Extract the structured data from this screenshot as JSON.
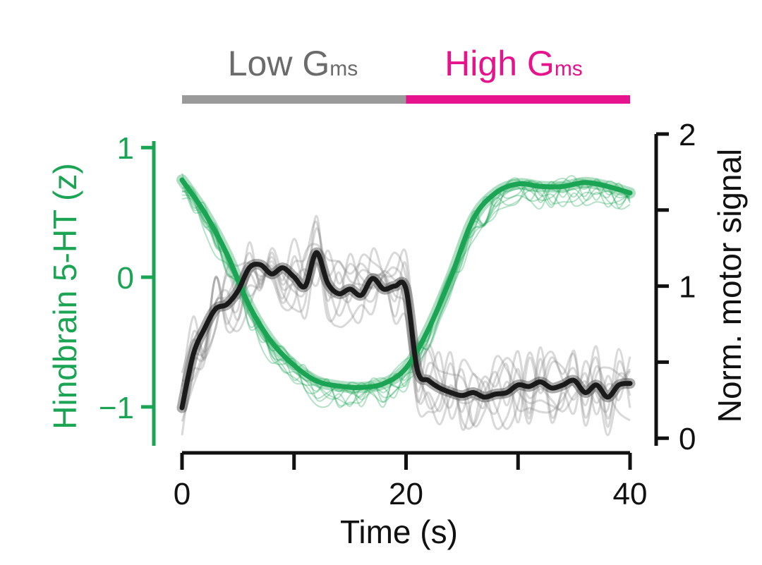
{
  "chart_data": {
    "type": "line",
    "conditions": [
      {
        "label": "Low G",
        "subscript": "ms",
        "color": "#9a9a9a",
        "x_range": [
          0,
          20
        ]
      },
      {
        "label": "High G",
        "subscript": "ms",
        "color": "#e6138c",
        "x_range": [
          20,
          40
        ]
      }
    ],
    "xlabel": "Time (s)",
    "xlim": [
      0,
      40
    ],
    "xticks": [
      0,
      10,
      20,
      30,
      40
    ],
    "xtick_labels": [
      "0",
      "20",
      "40"
    ],
    "y_left": {
      "label": "Hindbrain 5-HT (z)",
      "color": "#1aa454",
      "ylim": [
        -1.3,
        1.05
      ],
      "ticks": [
        1,
        0,
        -1
      ],
      "tick_labels": [
        "1",
        "0",
        "−1"
      ]
    },
    "y_right": {
      "label": "Norm. motor signal",
      "color": "#000000",
      "ylim": [
        -0.05,
        2.0
      ],
      "ticks": [
        0,
        0.5,
        1,
        1.5,
        2
      ],
      "tick_labels": [
        "0",
        "1",
        "2"
      ]
    },
    "mean_series": [
      {
        "axis": "left",
        "color": "#1aa454",
        "x": [
          0,
          2,
          4,
          6,
          8,
          10,
          12,
          14,
          16,
          18,
          20,
          22,
          24,
          26,
          28,
          30,
          32,
          34,
          36,
          38,
          40
        ],
        "y": [
          0.75,
          0.5,
          0.18,
          -0.22,
          -0.5,
          -0.68,
          -0.8,
          -0.84,
          -0.85,
          -0.82,
          -0.7,
          -0.4,
          0.0,
          0.45,
          0.65,
          0.72,
          0.7,
          0.7,
          0.73,
          0.7,
          0.65
        ]
      },
      {
        "axis": "right",
        "color": "#1a1a1a",
        "x": [
          0,
          1,
          2,
          3,
          4,
          5,
          6,
          7,
          8,
          9,
          10,
          11,
          12,
          13,
          14,
          15,
          16,
          17,
          18,
          19,
          20,
          21,
          22,
          23,
          24,
          25,
          26,
          27,
          28,
          29,
          30,
          31,
          32,
          33,
          34,
          35,
          36,
          37,
          38,
          39,
          40
        ],
        "y": [
          0.2,
          0.55,
          0.72,
          0.85,
          0.88,
          0.97,
          1.12,
          1.14,
          1.08,
          1.12,
          1.06,
          1.0,
          1.22,
          1.02,
          0.95,
          0.98,
          0.94,
          1.05,
          0.98,
          1.0,
          0.98,
          0.45,
          0.38,
          0.33,
          0.3,
          0.28,
          0.3,
          0.27,
          0.29,
          0.3,
          0.35,
          0.34,
          0.37,
          0.33,
          0.35,
          0.38,
          0.3,
          0.35,
          0.27,
          0.35,
          0.36
        ]
      }
    ]
  }
}
